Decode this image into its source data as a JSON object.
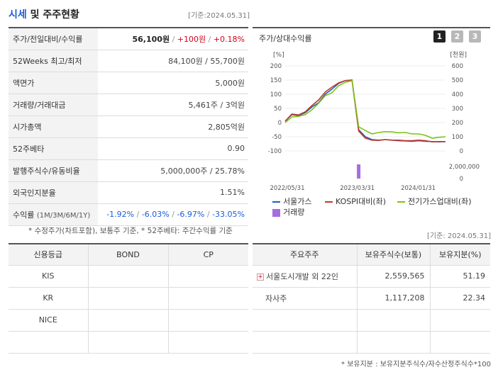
{
  "header": {
    "title_accent": "시세",
    "title_rest": " 및 주주현황",
    "asof": "[기준:2024.05.31]"
  },
  "info_rows": {
    "price": {
      "label": "주가/전일대비/수익률",
      "price": "56,100원",
      "change": "+100원",
      "rate": "+0.18%"
    },
    "week52": {
      "label": "52Weeks 최고/최저",
      "value": "84,100원 / 55,700원"
    },
    "par": {
      "label": "액면가",
      "value": "5,000원"
    },
    "volume": {
      "label": "거래량/거래대금",
      "value": "5,461주 / 3억원"
    },
    "mcap": {
      "label": "시가총액",
      "value": "2,805억원"
    },
    "beta": {
      "label": "52주베타",
      "value": "0.90"
    },
    "shares": {
      "label": "발행주식수/유동비율",
      "value": "5,000,000주 / 25.78%"
    },
    "foreign": {
      "label": "외국인지분율",
      "value": "1.51%"
    },
    "returns": {
      "label": "수익률",
      "label_sub": "(1M/3M/6M/1Y)",
      "r1m": "-1.92%",
      "r3m": "-6.03%",
      "r6m": "-6.97%",
      "r1y": "-33.05%"
    }
  },
  "footnote1": "* 수정주가(차트포함), 보통주 기준, * 52주베타: 주간수익률 기준",
  "asof2": "[기준: 2024.05.31]",
  "chart": {
    "title": "주가/상대수익률",
    "pages": [
      "1",
      "2",
      "3"
    ],
    "active_page": 1,
    "left_unit": "[%]",
    "right_unit": "[천원]",
    "left_ticks": [
      "200",
      "150",
      "100",
      "50",
      "0",
      "-50",
      "-100"
    ],
    "right_ticks": [
      "600",
      "500",
      "400",
      "300",
      "200",
      "100",
      "0"
    ],
    "vol_tick": "2,000,000",
    "vol_zero": "0",
    "x_ticks": [
      "2022/05/31",
      "2023/03/31",
      "2024/01/31"
    ]
  },
  "chart_data": {
    "type": "line",
    "x_labels": [
      "2022/05/31",
      "2023/03/31",
      "2024/01/31"
    ],
    "ylim_left": [
      -100,
      200
    ],
    "ylim_right": [
      0,
      600
    ],
    "series": [
      {
        "name": "서울가스",
        "color": "#1f5fbf",
        "axis": "left",
        "values": [
          5,
          28,
          25,
          35,
          55,
          70,
          100,
          118,
          138,
          148,
          150,
          -25,
          -50,
          -60,
          -62,
          -60,
          -62,
          -64,
          -65,
          -66,
          -64,
          -66,
          -67,
          -68,
          -67
        ]
      },
      {
        "name": "KOSPI대비(좌)",
        "color": "#c0392b",
        "axis": "left",
        "values": [
          5,
          30,
          27,
          38,
          60,
          80,
          108,
          125,
          140,
          148,
          150,
          -30,
          -55,
          -62,
          -63,
          -60,
          -62,
          -62,
          -64,
          -64,
          -62,
          -64,
          -68,
          -67,
          -67
        ]
      },
      {
        "name": "전기가스업대비(좌)",
        "color": "#7cc415",
        "axis": "left",
        "values": [
          0,
          20,
          22,
          28,
          45,
          68,
          95,
          105,
          130,
          142,
          148,
          -15,
          -28,
          -40,
          -35,
          -32,
          -33,
          -36,
          -35,
          -40,
          -40,
          -45,
          -55,
          -52,
          -50
        ]
      }
    ],
    "volume": {
      "name": "거래량",
      "color": "#a56ee0",
      "values": [
        0,
        0,
        0,
        0,
        0,
        0,
        0,
        0,
        0,
        0,
        0,
        2000000,
        0,
        0,
        0,
        0,
        0,
        0,
        0,
        0,
        0,
        0,
        0,
        0,
        0
      ]
    }
  },
  "legend": [
    "서울가스",
    "KOSPI대비(좌)",
    "전기가스업대비(좌)",
    "거래량"
  ],
  "credit": {
    "headers": [
      "신용등급",
      "BOND",
      "CP"
    ],
    "rows": [
      {
        "agency": "KIS",
        "bond": "",
        "cp": ""
      },
      {
        "agency": "KR",
        "bond": "",
        "cp": ""
      },
      {
        "agency": "NICE",
        "bond": "",
        "cp": ""
      },
      {
        "agency": "",
        "bond": "",
        "cp": ""
      }
    ]
  },
  "holders": {
    "headers": [
      "주요주주",
      "보유주식수(보통)",
      "보유지분(%)"
    ],
    "rows": [
      {
        "name": "서울도시개발 외 22인",
        "shares": "2,559,565",
        "pct": "51.19"
      },
      {
        "name": "자사주",
        "shares": "1,117,208",
        "pct": "22.34"
      },
      {
        "name": "",
        "shares": "",
        "pct": ""
      },
      {
        "name": "",
        "shares": "",
        "pct": ""
      }
    ]
  },
  "footnote2": "* 보유지분 : 보유지분주식수/자수산정주식수*100"
}
